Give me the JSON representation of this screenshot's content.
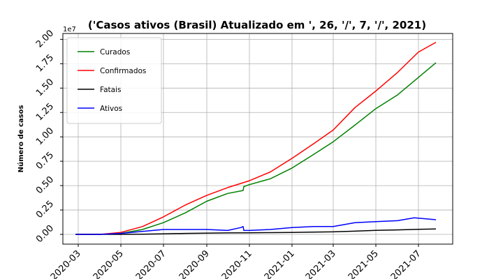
{
  "chart_data": {
    "type": "line",
    "title": "('Casos ativos (Brasil) Atualizado em ', 26, '/', 7, '/', 2021)",
    "xlabel": "",
    "ylabel": "Número de casos",
    "y_multiplier_label": "1e7",
    "ylim": [
      -0.1,
      2.06
    ],
    "y_ticks": [
      0.0,
      0.25,
      0.5,
      0.75,
      1.0,
      1.25,
      1.5,
      1.75,
      2.0
    ],
    "y_tick_labels": [
      "0.00",
      "0.25",
      "0.50",
      "0.75",
      "1.00",
      "1.25",
      "1.50",
      "1.75",
      "2.00"
    ],
    "xlim": [
      "2020-02-08",
      "2021-08-19"
    ],
    "x_ticks": [
      "2020-03-01",
      "2020-05-01",
      "2020-07-01",
      "2020-09-01",
      "2020-11-01",
      "2021-01-01",
      "2021-03-01",
      "2021-05-01",
      "2021-07-01"
    ],
    "x_tick_labels": [
      "2020-03",
      "2020-05",
      "2020-07",
      "2020-09",
      "2020-11",
      "2021-01",
      "2021-03",
      "2021-05",
      "2021-07"
    ],
    "grid": true,
    "legend_position": "upper-left",
    "series": [
      {
        "name": "Curados",
        "color": "#008000",
        "x": [
          "2020-02-26",
          "2020-04-01",
          "2020-05-01",
          "2020-06-01",
          "2020-07-01",
          "2020-08-01",
          "2020-09-01",
          "2020-10-01",
          "2020-10-23",
          "2020-10-24",
          "2020-11-01",
          "2020-12-01",
          "2021-01-01",
          "2021-02-01",
          "2021-03-01",
          "2021-04-01",
          "2021-05-01",
          "2021-06-01",
          "2021-07-01",
          "2021-07-26"
        ],
        "y": [
          0.0,
          0.0,
          0.01,
          0.05,
          0.12,
          0.22,
          0.34,
          0.42,
          0.45,
          0.49,
          0.51,
          0.57,
          0.68,
          0.82,
          0.95,
          1.12,
          1.29,
          1.43,
          1.61,
          1.76
        ]
      },
      {
        "name": "Confirmados",
        "color": "#ff0000",
        "x": [
          "2020-02-26",
          "2020-04-01",
          "2020-05-01",
          "2020-06-01",
          "2020-07-01",
          "2020-08-01",
          "2020-09-01",
          "2020-10-01",
          "2020-11-01",
          "2020-12-01",
          "2021-01-01",
          "2021-02-01",
          "2021-03-01",
          "2021-04-01",
          "2021-05-01",
          "2021-06-01",
          "2021-07-01",
          "2021-07-26"
        ],
        "y": [
          0.0,
          0.0,
          0.02,
          0.08,
          0.18,
          0.3,
          0.4,
          0.48,
          0.55,
          0.64,
          0.78,
          0.93,
          1.07,
          1.3,
          1.47,
          1.66,
          1.87,
          1.97
        ]
      },
      {
        "name": "Fatais",
        "color": "#000000",
        "x": [
          "2020-02-26",
          "2020-04-01",
          "2020-05-01",
          "2020-06-01",
          "2020-07-01",
          "2020-08-01",
          "2020-09-01",
          "2020-10-01",
          "2020-11-01",
          "2020-12-01",
          "2021-01-01",
          "2021-02-01",
          "2021-03-01",
          "2021-04-01",
          "2021-05-01",
          "2021-06-01",
          "2021-07-01",
          "2021-07-26"
        ],
        "y": [
          0.0,
          0.0,
          0.0,
          0.002,
          0.006,
          0.01,
          0.013,
          0.015,
          0.016,
          0.018,
          0.02,
          0.023,
          0.026,
          0.033,
          0.041,
          0.046,
          0.052,
          0.055
        ]
      },
      {
        "name": "Ativos",
        "color": "#0000ff",
        "x": [
          "2020-02-26",
          "2020-04-01",
          "2020-05-01",
          "2020-06-01",
          "2020-07-01",
          "2020-08-01",
          "2020-09-01",
          "2020-10-01",
          "2020-10-20",
          "2020-10-23",
          "2020-10-24",
          "2020-11-01",
          "2020-12-01",
          "2021-01-01",
          "2021-02-01",
          "2021-03-01",
          "2021-04-01",
          "2021-05-01",
          "2021-06-01",
          "2021-06-25",
          "2021-07-26"
        ],
        "y": [
          0.0,
          0.0,
          0.01,
          0.03,
          0.05,
          0.05,
          0.05,
          0.04,
          0.07,
          0.08,
          0.04,
          0.04,
          0.05,
          0.07,
          0.08,
          0.08,
          0.12,
          0.13,
          0.14,
          0.17,
          0.15
        ]
      }
    ]
  }
}
